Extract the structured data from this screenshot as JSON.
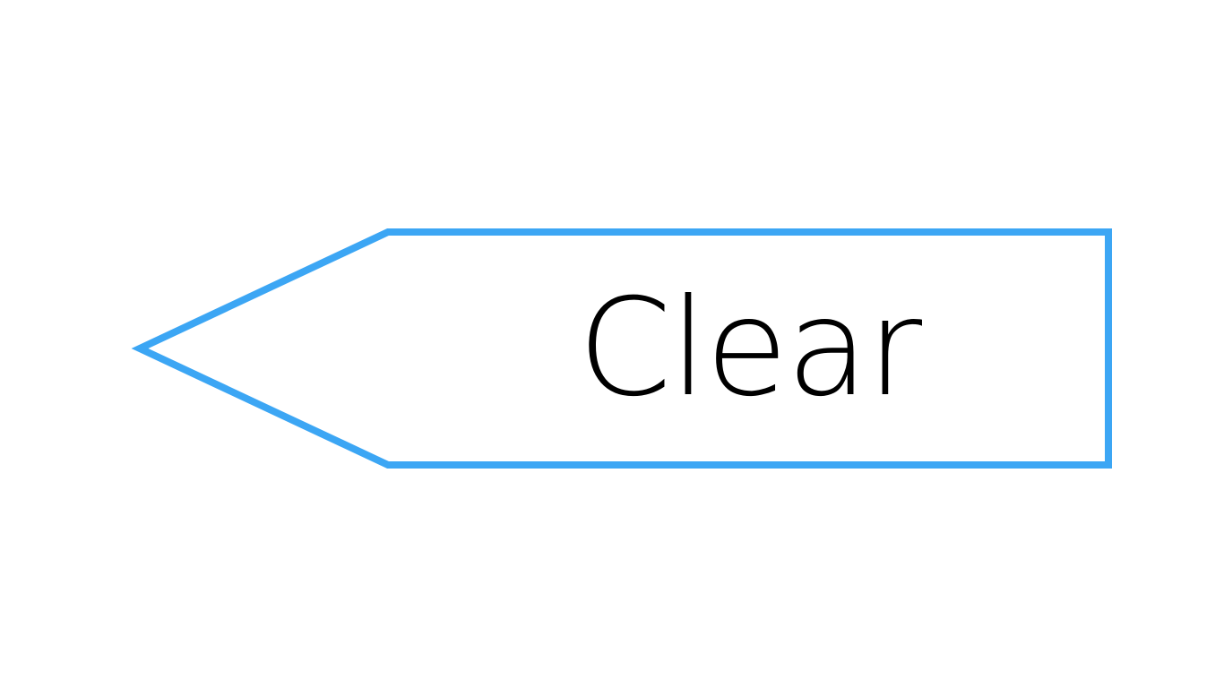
{
  "key": {
    "label": "Clear",
    "icon": "backspace-arrow-shape",
    "border_color": "#3ca6f4",
    "text_color": "#000000",
    "background_color": "#ffffff"
  }
}
